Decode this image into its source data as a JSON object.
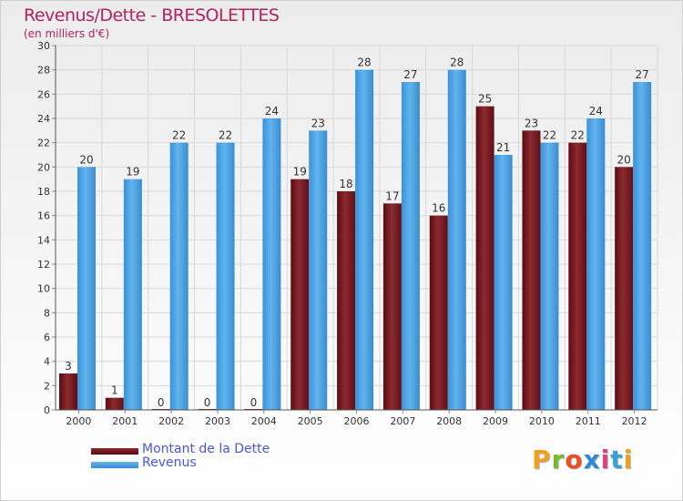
{
  "header": {
    "title": "Revenus/Dette - BRESOLETTES",
    "subtitle": "(en milliers d'€)"
  },
  "legend": {
    "dette_label": "Montant de la Dette",
    "revenus_label": "Revenus"
  },
  "colors": {
    "dette": "#7a1a20",
    "revenus": "#4aa3e6",
    "title": "#b0245a",
    "legend_text": "#4a58d8"
  },
  "logo": {
    "letters": [
      "P",
      "r",
      "o",
      "x",
      "i",
      "t",
      "i"
    ],
    "colors": [
      "#f0a020",
      "#7ab82a",
      "#e85020",
      "#2a8ad8",
      "#e04080",
      "#3aa0d8",
      "#f0a020"
    ]
  },
  "chart_data": {
    "type": "bar",
    "categories": [
      "2000",
      "2001",
      "2002",
      "2003",
      "2004",
      "2005",
      "2006",
      "2007",
      "2008",
      "2009",
      "2010",
      "2011",
      "2012"
    ],
    "series": [
      {
        "name": "Montant de la Dette",
        "values": [
          3,
          1,
          0,
          0,
          0,
          19,
          18,
          17,
          16,
          25,
          23,
          22,
          20
        ]
      },
      {
        "name": "Revenus",
        "values": [
          20,
          19,
          22,
          22,
          24,
          23,
          28,
          27,
          28,
          21,
          22,
          24,
          27
        ]
      }
    ],
    "title": "Revenus/Dette - BRESOLETTES",
    "ylabel": "(en milliers d'€)",
    "ylim": [
      0,
      30
    ],
    "yticks": [
      0,
      2,
      4,
      6,
      8,
      10,
      12,
      14,
      16,
      18,
      20,
      22,
      24,
      26,
      28,
      30
    ],
    "grid": true,
    "legend": "bottom-left"
  }
}
